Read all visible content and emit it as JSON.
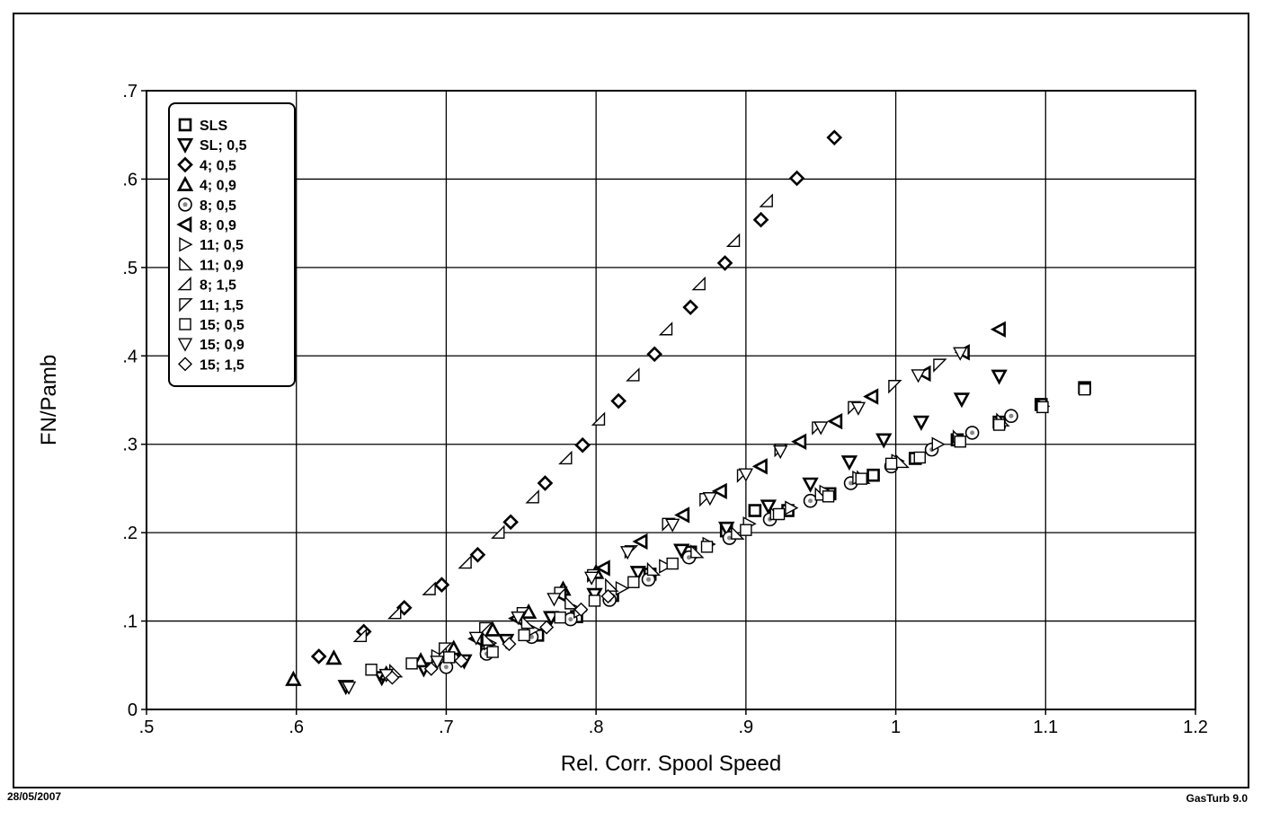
{
  "footer": {
    "date": "28/05/2007",
    "software": "GasTurb 9.0"
  },
  "chart_data": {
    "type": "scatter",
    "xlabel": "Rel. Corr. Spool Speed",
    "ylabel": "FN/Pamb",
    "xlim": [
      0.5,
      1.2
    ],
    "ylim": [
      0,
      0.7
    ],
    "xticks": [
      0.5,
      0.6,
      0.7,
      0.8,
      0.9,
      1.0,
      1.1,
      1.2
    ],
    "xtick_labels": [
      ".5",
      ".6",
      ".7",
      ".8",
      ".9",
      "1",
      "1.1",
      "1.2"
    ],
    "yticks": [
      0,
      0.1,
      0.2,
      0.3,
      0.4,
      0.5,
      0.6,
      0.7
    ],
    "ytick_labels": [
      "0",
      ".1",
      ".2",
      ".3",
      ".4",
      ".5",
      ".6",
      ".7"
    ],
    "grid": true,
    "legend_position": "top-left",
    "series": [
      {
        "name": "SLS",
        "marker": "square-bold",
        "x": [
          0.727,
          0.761,
          0.787,
          0.811,
          0.836,
          0.863,
          0.887,
          0.906,
          0.928,
          0.956,
          0.985,
          1.013,
          1.041,
          1.069,
          1.097,
          1.126
        ],
        "y": [
          0.066,
          0.084,
          0.105,
          0.129,
          0.153,
          0.178,
          0.202,
          0.225,
          0.225,
          0.244,
          0.265,
          0.284,
          0.305,
          0.325,
          0.345,
          0.364
        ]
      },
      {
        "name": "SL; 0,5",
        "marker": "tri-down-bold",
        "x": [
          0.633,
          0.657,
          0.685,
          0.712,
          0.74,
          0.77,
          0.799,
          0.828,
          0.857,
          0.887,
          0.915,
          0.943,
          0.969,
          0.992,
          1.017,
          1.044,
          1.069
        ],
        "y": [
          0.026,
          0.036,
          0.046,
          0.055,
          0.078,
          0.104,
          0.13,
          0.155,
          0.18,
          0.205,
          0.23,
          0.255,
          0.28,
          0.305,
          0.325,
          0.351,
          0.377
        ]
      },
      {
        "name": "4; 0,5",
        "marker": "diamond-bold",
        "x": [
          0.615,
          0.645,
          0.672,
          0.697,
          0.721,
          0.743,
          0.766,
          0.791,
          0.815,
          0.839,
          0.863,
          0.886,
          0.91,
          0.934,
          0.959
        ],
        "y": [
          0.06,
          0.088,
          0.115,
          0.141,
          0.175,
          0.212,
          0.256,
          0.299,
          0.349,
          0.402,
          0.455,
          0.505,
          0.554,
          0.601,
          0.647
        ]
      },
      {
        "name": "4; 0,9",
        "marker": "tri-up-bold",
        "x": [
          0.598,
          0.625,
          0.66,
          0.683,
          0.705,
          0.731,
          0.755,
          0.778,
          0.8
        ],
        "y": [
          0.034,
          0.058,
          0.04,
          0.055,
          0.069,
          0.09,
          0.11,
          0.136,
          0.155
        ]
      },
      {
        "name": "8; 0,5",
        "marker": "circle-dot",
        "x": [
          0.7,
          0.727,
          0.757,
          0.783,
          0.809,
          0.835,
          0.862,
          0.889,
          0.916,
          0.943,
          0.97,
          0.997,
          1.024,
          1.051,
          1.077
        ],
        "y": [
          0.048,
          0.063,
          0.082,
          0.102,
          0.124,
          0.147,
          0.172,
          0.194,
          0.215,
          0.236,
          0.256,
          0.275,
          0.294,
          0.313,
          0.332
        ]
      },
      {
        "name": "8; 0,9",
        "marker": "tri-left-bold",
        "x": [
          0.72,
          0.747,
          0.776,
          0.805,
          0.83,
          0.858,
          0.883,
          0.91,
          0.936,
          0.96,
          0.984,
          1.019,
          1.045,
          1.069
        ],
        "y": [
          0.08,
          0.103,
          0.13,
          0.16,
          0.19,
          0.22,
          0.247,
          0.275,
          0.303,
          0.326,
          0.354,
          0.38,
          0.404,
          0.43
        ]
      },
      {
        "name": "11; 0,5",
        "marker": "tri-right",
        "x": [
          0.694,
          0.729,
          0.758,
          0.789,
          0.817,
          0.846,
          0.875,
          0.902,
          0.93,
          0.953,
          0.975,
          1.001,
          1.028,
          1.069,
          1.098
        ],
        "y": [
          0.06,
          0.075,
          0.09,
          0.111,
          0.137,
          0.162,
          0.187,
          0.21,
          0.228,
          0.246,
          0.262,
          0.281,
          0.3,
          0.324,
          0.343
        ]
      },
      {
        "name": "11; 0,9",
        "marker": "tri-right-corner",
        "x": [
          0.666,
          0.699,
          0.728,
          0.754,
          0.783,
          0.81,
          0.838,
          0.867,
          0.894,
          0.92,
          0.95,
          0.978,
          1.004,
          1.042,
          1.071
        ],
        "y": [
          0.043,
          0.062,
          0.079,
          0.098,
          0.12,
          0.14,
          0.158,
          0.178,
          0.199,
          0.221,
          0.243,
          0.262,
          0.28,
          0.308,
          0.327
        ]
      },
      {
        "name": "8; 1,5",
        "marker": "tri-corner-ur",
        "x": [
          0.643,
          0.666,
          0.689,
          0.713,
          0.735,
          0.758,
          0.78,
          0.802,
          0.825,
          0.847,
          0.869,
          0.892,
          0.914
        ],
        "y": [
          0.083,
          0.109,
          0.136,
          0.166,
          0.2,
          0.24,
          0.284,
          0.328,
          0.378,
          0.43,
          0.481,
          0.53,
          0.575
        ]
      },
      {
        "name": "11; 1,5",
        "marker": "tri-corner-dl",
        "x": [
          0.699,
          0.726,
          0.751,
          0.776,
          0.798,
          0.823,
          0.848,
          0.873,
          0.898,
          0.923,
          0.948,
          0.972,
          0.999,
          1.029
        ],
        "y": [
          0.069,
          0.092,
          0.109,
          0.132,
          0.152,
          0.179,
          0.21,
          0.238,
          0.265,
          0.294,
          0.319,
          0.342,
          0.366,
          0.39
        ]
      },
      {
        "name": "15; 0,5",
        "marker": "square",
        "x": [
          0.65,
          0.677,
          0.702,
          0.731,
          0.752,
          0.776,
          0.799,
          0.825,
          0.851,
          0.874,
          0.9,
          0.922,
          0.955,
          0.977,
          0.997,
          1.016,
          1.043,
          1.069,
          1.098,
          1.126
        ],
        "y": [
          0.045,
          0.052,
          0.059,
          0.065,
          0.084,
          0.104,
          0.123,
          0.144,
          0.165,
          0.184,
          0.203,
          0.221,
          0.241,
          0.261,
          0.278,
          0.285,
          0.303,
          0.322,
          0.342,
          0.362
        ]
      },
      {
        "name": "15; 0,9",
        "marker": "tri-down",
        "x": [
          0.635,
          0.66,
          0.694,
          0.72,
          0.748,
          0.772,
          0.797,
          0.821,
          0.851,
          0.876,
          0.9,
          0.923,
          0.95,
          0.975,
          1.015,
          1.043
        ],
        "y": [
          0.025,
          0.039,
          0.054,
          0.081,
          0.104,
          0.125,
          0.149,
          0.178,
          0.209,
          0.239,
          0.266,
          0.292,
          0.319,
          0.341,
          0.378,
          0.403
        ]
      },
      {
        "name": "15; 1,5",
        "marker": "diamond",
        "x": [
          0.664,
          0.69,
          0.71,
          0.742,
          0.767,
          0.79,
          0.808
        ],
        "y": [
          0.036,
          0.046,
          0.055,
          0.074,
          0.093,
          0.113,
          0.128
        ]
      }
    ]
  }
}
